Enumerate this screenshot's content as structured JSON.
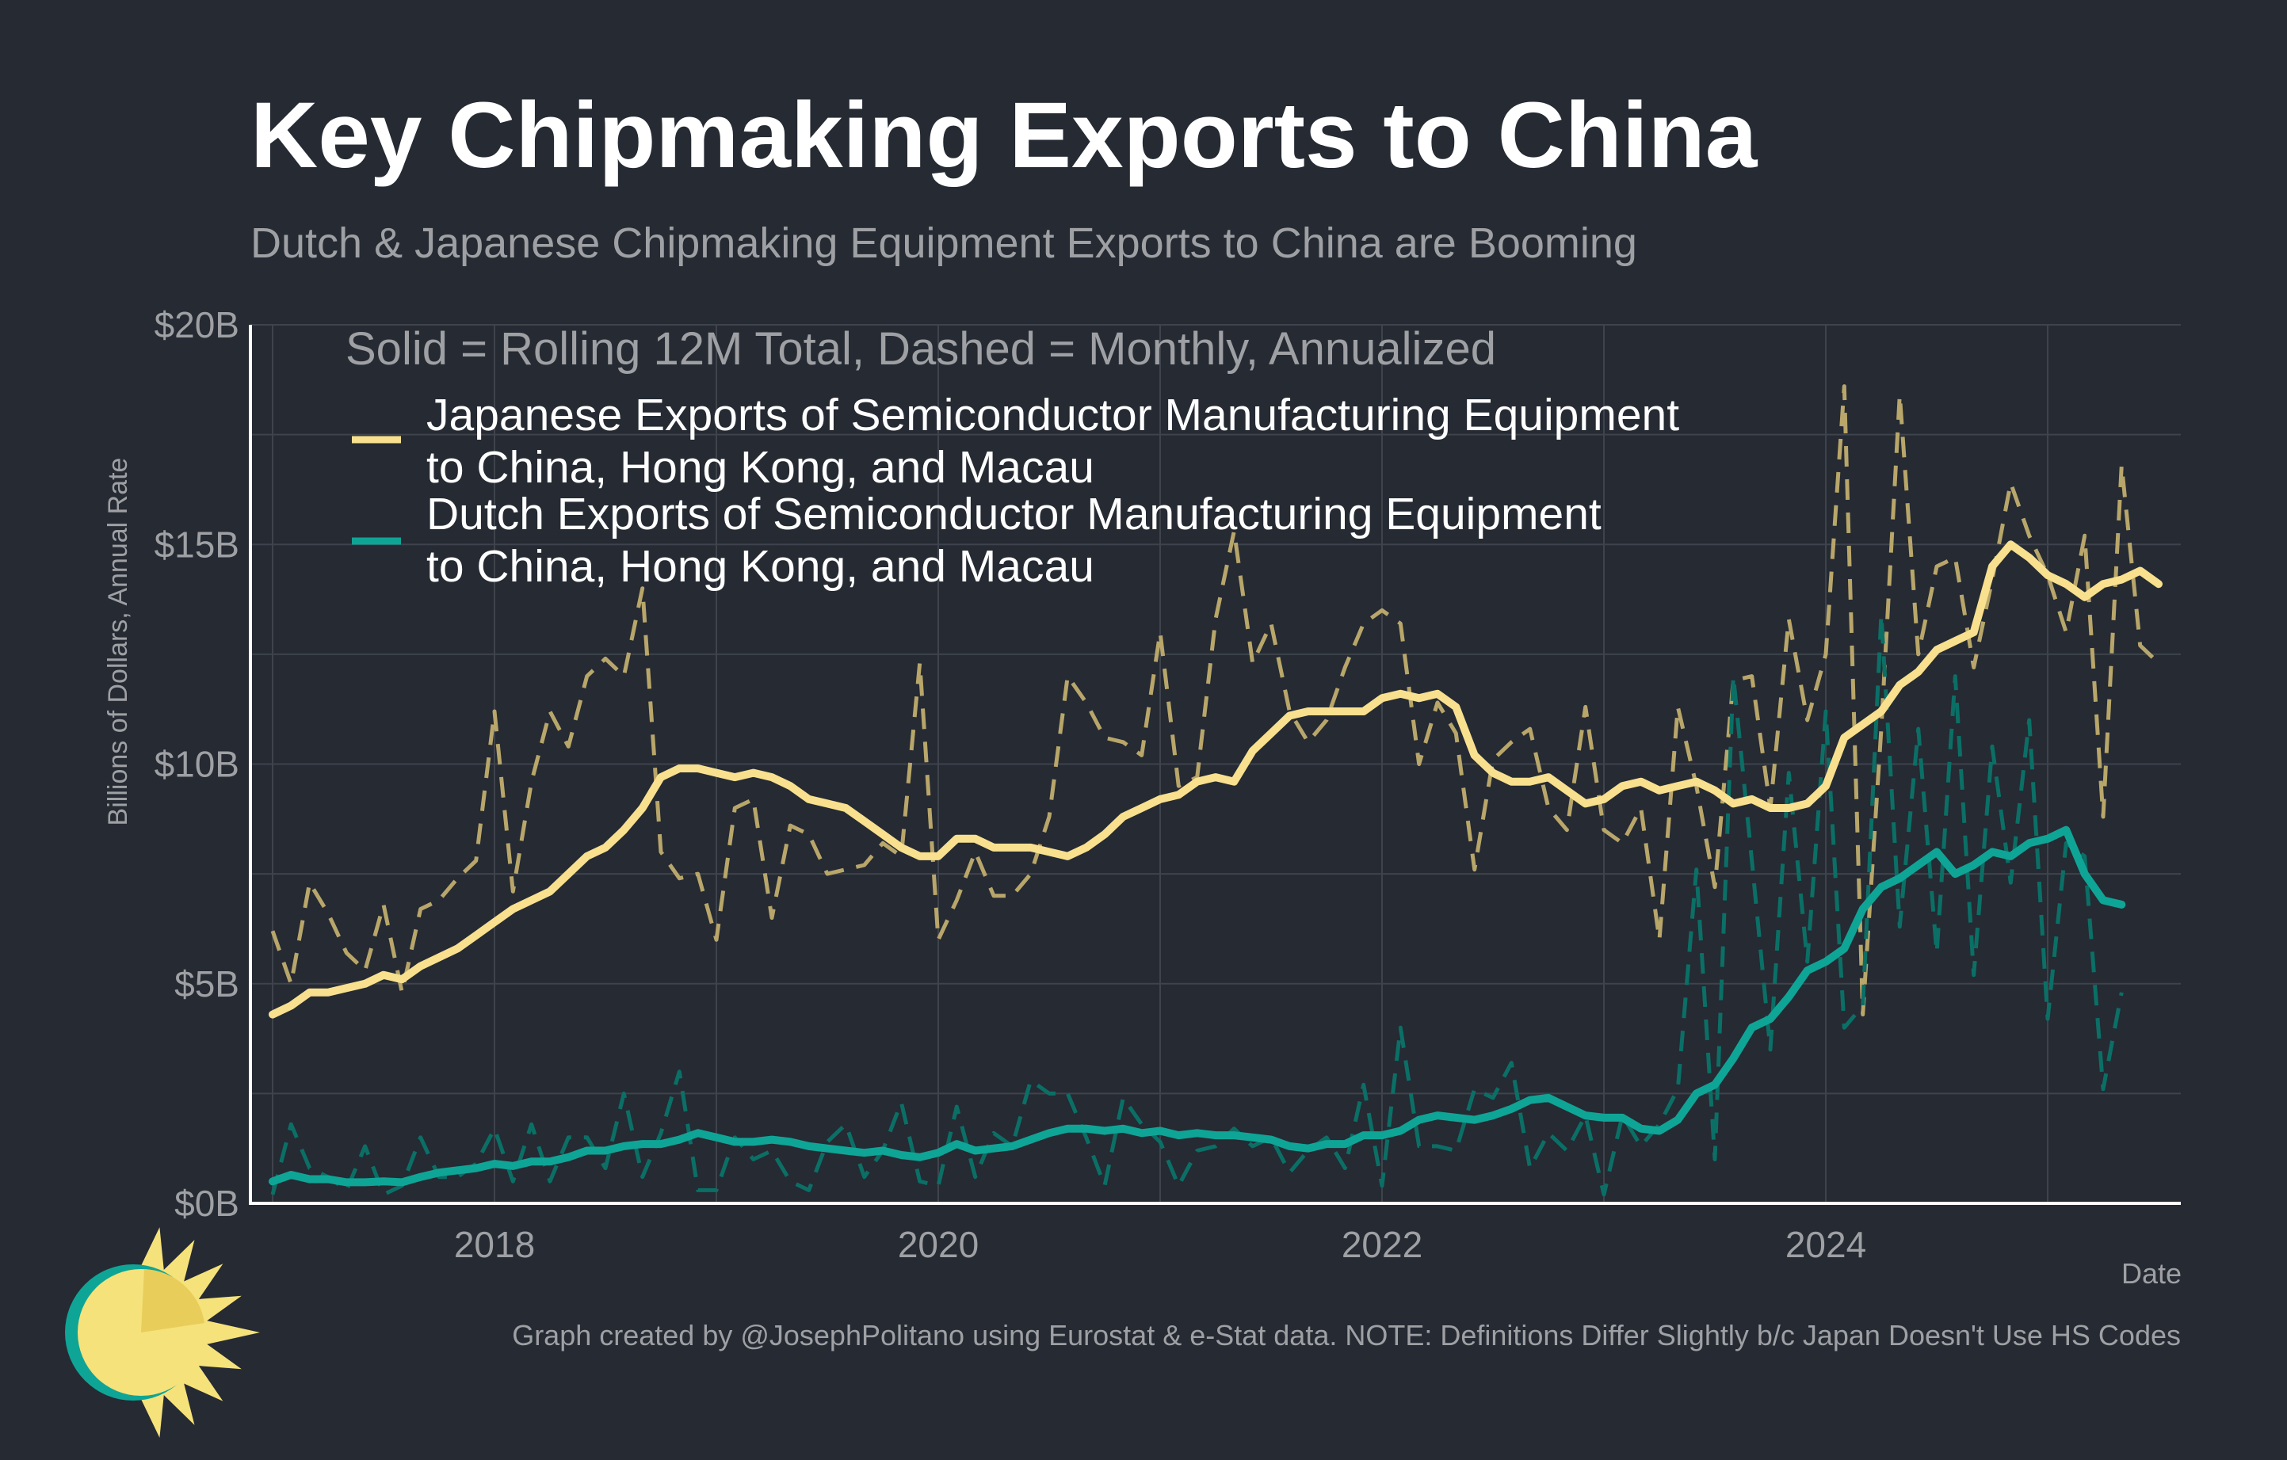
{
  "header": {
    "title": "Key Chipmaking Exports to China",
    "subtitle": "Dutch & Japanese Chipmaking Equipment Exports to China are Booming"
  },
  "footer": {
    "caption": "Graph created by @JosephPolitano using Eurostat & e-Stat data. NOTE: Definitions Differ Slightly b/c Japan Doesn't Use HS Codes"
  },
  "logo": {
    "icon": "sun-logo-icon",
    "colors": [
      "#f5e27a",
      "#0fa596"
    ]
  },
  "chart_data": {
    "type": "line",
    "ylabel": "Billions of Dollars, Annual Rate",
    "xlabel": "Date",
    "y_ticks": [
      {
        "value": 0,
        "label": "$0B"
      },
      {
        "value": 5,
        "label": "$5B"
      },
      {
        "value": 10,
        "label": "$10B"
      },
      {
        "value": 15,
        "label": "$15B"
      },
      {
        "value": 20,
        "label": "$20B"
      }
    ],
    "x_ticks": [
      {
        "value": 2018,
        "label": "2018"
      },
      {
        "value": 2020,
        "label": "2020"
      },
      {
        "value": 2022,
        "label": "2022"
      },
      {
        "value": 2024,
        "label": "2024"
      }
    ],
    "ylim": [
      0,
      20
    ],
    "xlim": [
      2016.9,
      2025.6
    ],
    "grid": true,
    "legend": {
      "title": "Solid = Rolling 12M Total, Dashed = Monthly, Annualized",
      "placement": "top-left",
      "entries": [
        {
          "line1": "Japanese Exports of Semiconductor Manufacturing Equipment",
          "line2": "to China, Hong Kong, and Macau",
          "color": "#f8e08e"
        },
        {
          "line1": "Dutch Exports of Semiconductor Manufacturing Equipment",
          "line2": "to China, Hong Kong, and Macau",
          "color": "#0fa596"
        }
      ]
    },
    "series": [
      {
        "key": "japan_rolling",
        "color": "#f8e08e",
        "style": "solid",
        "start": [
          2017,
          1
        ],
        "values": [
          4.3,
          4.5,
          4.8,
          4.8,
          4.9,
          5.0,
          5.2,
          5.1,
          5.4,
          5.6,
          5.8,
          6.1,
          6.4,
          6.7,
          6.9,
          7.1,
          7.5,
          7.9,
          8.1,
          8.5,
          9.0,
          9.7,
          9.9,
          9.9,
          9.8,
          9.7,
          9.8,
          9.7,
          9.5,
          9.2,
          9.1,
          9.0,
          8.7,
          8.4,
          8.1,
          7.9,
          7.9,
          8.3,
          8.3,
          8.1,
          8.1,
          8.1,
          8.0,
          7.9,
          8.1,
          8.4,
          8.8,
          9.0,
          9.2,
          9.3,
          9.6,
          9.7,
          9.6,
          10.3,
          10.7,
          11.1,
          11.2,
          11.2,
          11.2,
          11.2,
          11.5,
          11.6,
          11.5,
          11.6,
          11.3,
          10.2,
          9.8,
          9.6,
          9.6,
          9.7,
          9.4,
          9.1,
          9.2,
          9.5,
          9.6,
          9.4,
          9.5,
          9.6,
          9.4,
          9.1,
          9.2,
          9.0,
          9.0,
          9.1,
          9.5,
          10.6,
          10.9,
          11.2,
          11.8,
          12.1,
          12.6,
          12.8,
          13.0,
          14.5,
          15.0,
          14.7,
          14.3,
          14.1,
          13.8,
          14.1,
          14.2,
          14.4,
          14.1
        ]
      },
      {
        "key": "japan_monthly",
        "color": "#b8a66a",
        "style": "dashed",
        "start": [
          2017,
          1
        ],
        "values": [
          6.2,
          5.0,
          7.3,
          6.6,
          5.7,
          5.3,
          6.8,
          4.8,
          6.7,
          6.9,
          7.4,
          7.8,
          11.2,
          7.1,
          9.6,
          11.2,
          10.4,
          12.0,
          12.4,
          12.0,
          14.0,
          8.0,
          7.4,
          7.5,
          6.0,
          9.0,
          9.2,
          6.5,
          8.6,
          8.4,
          7.5,
          7.6,
          7.7,
          8.2,
          7.9,
          12.3,
          6.0,
          6.9,
          8.0,
          7.0,
          7.0,
          7.5,
          8.8,
          12.0,
          11.4,
          10.6,
          10.5,
          10.2,
          13.0,
          9.5,
          9.7,
          13.3,
          15.3,
          12.3,
          13.2,
          11.2,
          10.5,
          11.0,
          12.2,
          13.2,
          13.5,
          13.2,
          10.0,
          11.4,
          10.7,
          7.6,
          10.1,
          10.5,
          10.8,
          9.0,
          8.5,
          11.3,
          8.5,
          8.2,
          9.0,
          6.0,
          11.3,
          9.5,
          7.2,
          11.9,
          12.0,
          9.0,
          13.3,
          11.0,
          12.5,
          18.6,
          4.3,
          10.8,
          18.4,
          12.5,
          14.5,
          14.7,
          12.2,
          14.2,
          16.4,
          15.2,
          14.3,
          13.0,
          15.2,
          8.8,
          16.8,
          12.7,
          12.3
        ]
      },
      {
        "key": "dutch_rolling",
        "color": "#0fa596",
        "style": "solid",
        "start": [
          2017,
          1
        ],
        "values": [
          0.5,
          0.65,
          0.55,
          0.55,
          0.48,
          0.48,
          0.5,
          0.48,
          0.6,
          0.7,
          0.75,
          0.8,
          0.9,
          0.85,
          0.95,
          0.95,
          1.05,
          1.2,
          1.2,
          1.3,
          1.35,
          1.35,
          1.45,
          1.6,
          1.5,
          1.4,
          1.4,
          1.45,
          1.4,
          1.3,
          1.25,
          1.2,
          1.15,
          1.2,
          1.1,
          1.05,
          1.15,
          1.35,
          1.2,
          1.25,
          1.3,
          1.45,
          1.6,
          1.7,
          1.7,
          1.65,
          1.7,
          1.6,
          1.65,
          1.55,
          1.6,
          1.55,
          1.55,
          1.5,
          1.45,
          1.3,
          1.25,
          1.35,
          1.35,
          1.55,
          1.55,
          1.65,
          1.9,
          2.0,
          1.95,
          1.9,
          2.0,
          2.15,
          2.35,
          2.4,
          2.2,
          2.0,
          1.95,
          1.95,
          1.7,
          1.65,
          1.9,
          2.5,
          2.7,
          3.3,
          4.0,
          4.2,
          4.7,
          5.3,
          5.5,
          5.8,
          6.7,
          7.2,
          7.4,
          7.7,
          8.0,
          7.5,
          7.7,
          8.0,
          7.9,
          8.2,
          8.3,
          8.5,
          7.5,
          6.9,
          6.8
        ]
      },
      {
        "key": "dutch_monthly",
        "color": "#0b6f66",
        "style": "dashed",
        "start": [
          2017,
          1
        ],
        "values": [
          0.2,
          1.8,
          0.8,
          0.6,
          0.3,
          1.3,
          0.2,
          0.4,
          1.5,
          0.6,
          0.6,
          0.9,
          1.7,
          0.5,
          1.8,
          0.5,
          1.5,
          1.5,
          0.8,
          2.5,
          0.6,
          1.6,
          3.0,
          0.3,
          0.3,
          1.5,
          1.0,
          1.2,
          0.5,
          0.3,
          1.4,
          1.8,
          0.6,
          1.2,
          2.3,
          0.5,
          0.4,
          2.2,
          0.6,
          1.6,
          1.3,
          2.8,
          2.5,
          2.5,
          1.5,
          0.4,
          2.4,
          1.8,
          1.4,
          0.4,
          1.2,
          1.3,
          1.7,
          1.3,
          1.5,
          0.7,
          1.2,
          1.5,
          0.8,
          2.7,
          0.4,
          4.0,
          1.3,
          1.3,
          1.2,
          2.6,
          2.4,
          3.2,
          0.8,
          1.6,
          1.2,
          2.0,
          0.2,
          2.0,
          1.3,
          1.8,
          2.6,
          7.6,
          1.0,
          12.0,
          7.8,
          3.5,
          9.8,
          5.5,
          11.2,
          4.0,
          4.5,
          13.4,
          6.3,
          10.8,
          5.7,
          12.0,
          5.2,
          10.4,
          7.3,
          11.0,
          4.2,
          8.2,
          7.9,
          2.6,
          4.8
        ]
      }
    ]
  }
}
